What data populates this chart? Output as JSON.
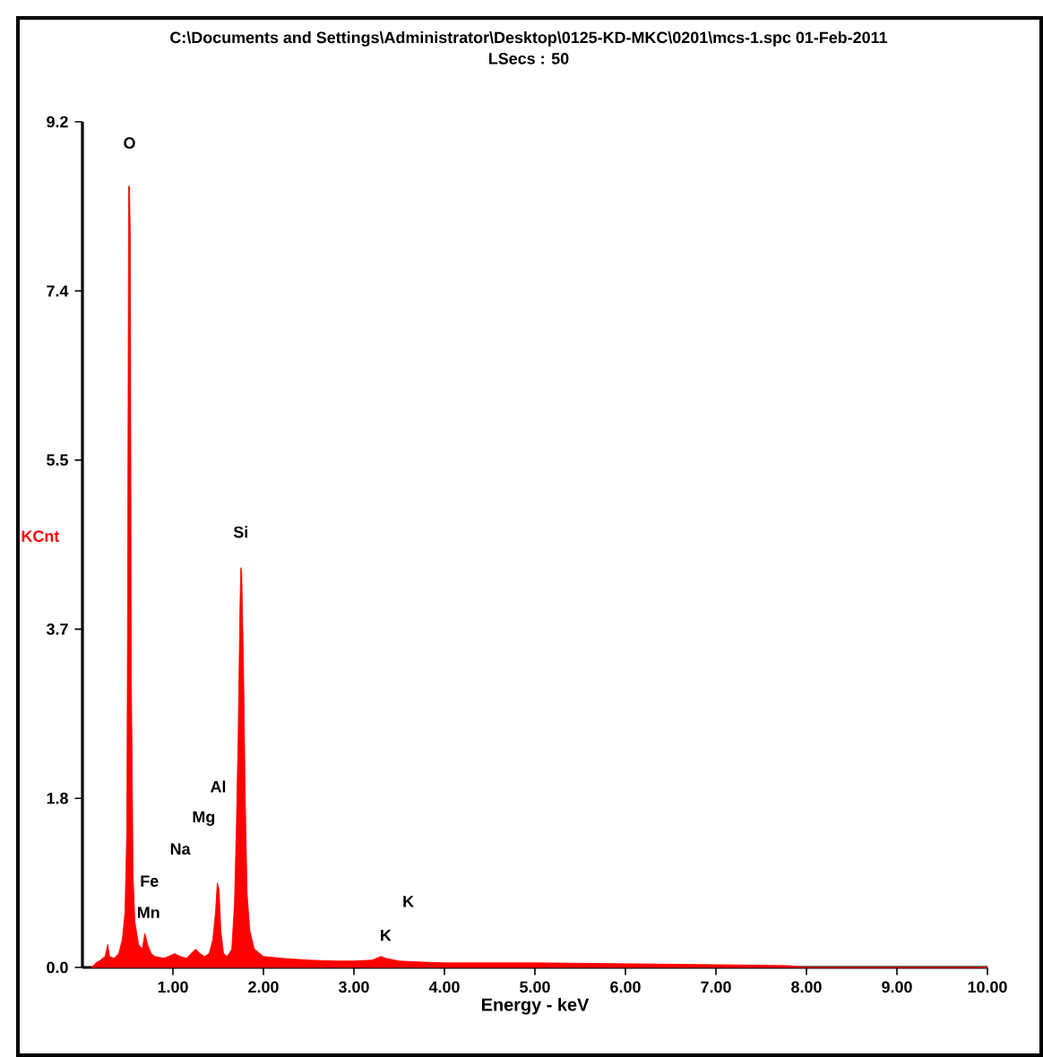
{
  "chart_data": {
    "type": "area",
    "title": "C:\\Documents and Settings\\Administrator\\Desktop\\0125-KD-MKC\\0201\\mcs-1.spc  01-Feb-2011",
    "subtitle": "LSecs :  50",
    "xlabel": "Energy - keV",
    "ylabel": "KCnt",
    "x": [
      0.1,
      0.15,
      0.2,
      0.25,
      0.28,
      0.3,
      0.35,
      0.4,
      0.44,
      0.47,
      0.49,
      0.5,
      0.51,
      0.52,
      0.53,
      0.54,
      0.55,
      0.56,
      0.58,
      0.62,
      0.66,
      0.69,
      0.72,
      0.76,
      0.8,
      0.9,
      0.95,
      1.02,
      1.08,
      1.15,
      1.2,
      1.25,
      1.3,
      1.35,
      1.4,
      1.44,
      1.47,
      1.49,
      1.51,
      1.53,
      1.56,
      1.6,
      1.65,
      1.68,
      1.7,
      1.72,
      1.74,
      1.75,
      1.76,
      1.78,
      1.8,
      1.82,
      1.85,
      1.9,
      2.0,
      2.2,
      2.5,
      2.8,
      3.0,
      3.2,
      3.3,
      3.35,
      3.5,
      3.7,
      4.0,
      5.0,
      6.0,
      7.0,
      7.8,
      8.0,
      10.0
    ],
    "series": [
      {
        "color": "#ff0000",
        "values": [
          0.0,
          0.05,
          0.08,
          0.12,
          0.25,
          0.12,
          0.1,
          0.15,
          0.3,
          0.6,
          1.5,
          4.3,
          8.5,
          8.5,
          7.9,
          3.2,
          2.2,
          1.0,
          0.5,
          0.25,
          0.2,
          0.37,
          0.25,
          0.15,
          0.12,
          0.1,
          0.12,
          0.15,
          0.12,
          0.1,
          0.15,
          0.2,
          0.15,
          0.12,
          0.15,
          0.3,
          0.6,
          0.92,
          0.85,
          0.4,
          0.15,
          0.12,
          0.2,
          0.7,
          1.5,
          2.5,
          3.9,
          4.35,
          4.3,
          3.3,
          1.8,
          0.8,
          0.4,
          0.2,
          0.12,
          0.1,
          0.08,
          0.07,
          0.07,
          0.08,
          0.12,
          0.1,
          0.07,
          0.06,
          0.05,
          0.05,
          0.04,
          0.03,
          0.02,
          0.0,
          0.0
        ]
      }
    ],
    "xlim": [
      0,
      10
    ],
    "ylim": [
      0,
      9.2
    ],
    "xticks": [
      {
        "value": 1,
        "label": "1.00"
      },
      {
        "value": 2,
        "label": "2.00"
      },
      {
        "value": 3,
        "label": "3.00"
      },
      {
        "value": 4,
        "label": "4.00"
      },
      {
        "value": 5,
        "label": "5.00"
      },
      {
        "value": 6,
        "label": "6.00"
      },
      {
        "value": 7,
        "label": "7.00"
      },
      {
        "value": 8,
        "label": "8.00"
      },
      {
        "value": 9,
        "label": "9.00"
      },
      {
        "value": 10,
        "label": "10.00"
      }
    ],
    "yticks": [
      {
        "value": 0,
        "label": "0.0"
      },
      {
        "value": 1.84,
        "label": "1.8"
      },
      {
        "value": 3.68,
        "label": "3.7"
      },
      {
        "value": 5.52,
        "label": "5.5"
      },
      {
        "value": 7.36,
        "label": "7.4"
      },
      {
        "value": 9.2,
        "label": "9.2"
      }
    ],
    "annotations": [
      "O",
      "Si",
      "Al",
      "Mg",
      "Na",
      "Fe",
      "Mn",
      "K",
      "K"
    ]
  }
}
